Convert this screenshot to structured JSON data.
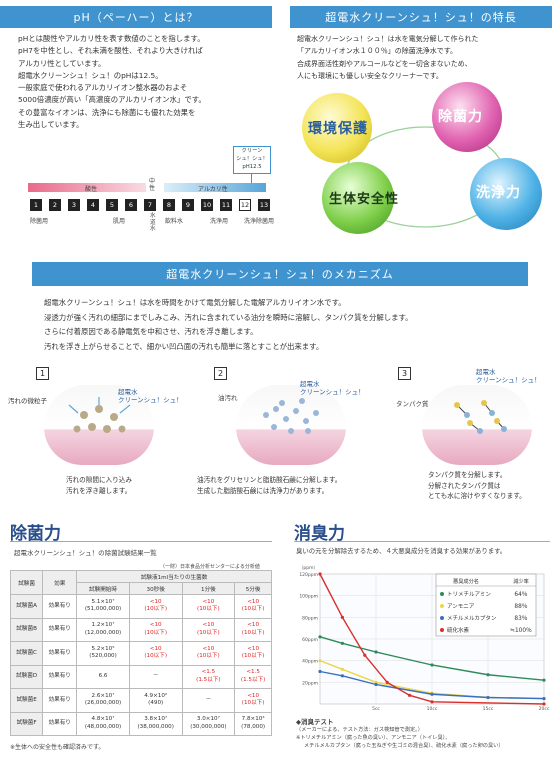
{
  "ph_section": {
    "title": "pH（ペーハー）とは？",
    "lines": [
      "pHとは酸性やアルカリ性を表す数値のことを指します。",
      "pH7を中性とし、それ未満を酸性、それより大きければ",
      "アルカリ性としています。",
      "超電水クリーンシュ！シュ！のpHは12.5。",
      "一般家庭で使われるアルカリイオン整水器のおよそ",
      "5000倍濃度が高い「高濃度のアルカリイオン水」です。",
      "その豊富なイオンは、洗浄にも除菌にも優れた効果を",
      "生み出しています。"
    ],
    "callout": "クリーン\nシュ！シュ！\npH12.5",
    "acid_label": "酸性",
    "neutral_label": "中\n性",
    "alkali_label": "アルカリ性",
    "scale": [
      "1",
      "2",
      "3",
      "4",
      "5",
      "6",
      "7",
      "8",
      "9",
      "10",
      "11",
      "12",
      "13"
    ],
    "uses": [
      "除菌用",
      "肌用",
      "水道水",
      "飲料水",
      "洗浄用",
      "洗浄除菌用"
    ]
  },
  "feature_section": {
    "title": "超電水クリーンシュ！シュ！の特長",
    "lines": [
      "超電水クリーンシュ！シュ！は水を電気分解して作られた",
      "「アルカリイオン水１００％」の除菌洗浄水です。",
      "合成界面活性剤やアルコールなどを一切含まないため、",
      "人にも環境にも優しい安全なクリーナーです。"
    ],
    "circles": [
      "環境保護",
      "除菌力",
      "生体安全性",
      "洗浄力"
    ]
  },
  "mechanism": {
    "title": "超電水クリーンシュ！シュ！のメカニズム",
    "lines": [
      "超電水クリーンシュ！シュ！は水を時間をかけて電気分解した電解アルカリイオン水です。",
      "浸透力が強く汚れの細部にまでしみこみ、汚れに含まれている油分を瞬時に溶解し、タンパク質を分解します。",
      "さらに付着原因である静電気を中和させ、汚れを浮き離します。",
      "汚れを浮き上がらせることで、細かい凹凸面の汚れも簡単に落とすことが出来ます。"
    ],
    "steps": [
      {
        "num": "1",
        "label_a": "汚れの微粒子",
        "label_b": "超電水\nクリーンシュ！シュ！",
        "caption": "汚れの隙間に入り込み\n汚れを浮き離します。"
      },
      {
        "num": "2",
        "label_a": "油汚れ",
        "label_b": "超電水\nクリーンシュ！シュ！",
        "caption": "油汚れをグリセリンと脂肪酸石鹸に分解します。\n生成した脂肪酸石鹸には洗浄力があります。"
      },
      {
        "num": "3",
        "label_a": "タンパク質",
        "label_b": "超電水\nクリーンシュ！シュ！",
        "caption": "タンパク質を分解します。\n分解されたタンパク質は\nとても水に溶けやすくなります。"
      }
    ]
  },
  "sterilization": {
    "title": "除菌力",
    "subtitle": "超電水クリーンシュ！シュ！の除菌試験結果一覧",
    "source": "（一財）日本食品分析センターによる分析値",
    "head_top": "試験液1ml当たりの生菌数",
    "headers": [
      "試験菌",
      "効果",
      "試験開始時",
      "30秒後",
      "1分後",
      "5分後"
    ],
    "rows": [
      {
        "name": "試験菌A",
        "effect": "効果有り",
        "start": "5.1×10⁷\n(51,000,000)",
        "s30": "<10\n(10以下)",
        "m1": "<10\n(10以下)",
        "m5": "<10\n(10以下)"
      },
      {
        "name": "試験菌B",
        "effect": "効果有り",
        "start": "1.2×10⁷\n(12,000,000)",
        "s30": "<10\n(10以下)",
        "m1": "<10\n(10以下)",
        "m5": "<10\n(10以下)"
      },
      {
        "name": "試験菌C",
        "effect": "効果有り",
        "start": "5.2×10⁵\n(520,000)",
        "s30": "<10\n(10以下)",
        "m1": "<10\n(10以下)",
        "m5": "<10\n(10以下)"
      },
      {
        "name": "試験菌D",
        "effect": "効果有り",
        "start": "6.6",
        "s30": "－",
        "m1": "<1.5\n(1.5以下)",
        "m5": "<1.5\n(1.5以下)"
      },
      {
        "name": "試験菌E",
        "effect": "効果有り",
        "start": "2.6×10⁷\n(26,000,000)",
        "s30": "4.9×10²\n(490)",
        "m1": "－",
        "m5": "<10\n(10以下)"
      },
      {
        "name": "試験菌F",
        "effect": "効果有り",
        "start": "4.8×10⁷\n(48,000,000)",
        "s30": "3.8×10⁷\n(38,000,000)",
        "m1": "3.0×10⁷\n(30,000,000)",
        "m5": "7.8×10⁴\n(78,000)"
      }
    ],
    "footnote": "※生体への安全性も確認済みです。"
  },
  "deodor": {
    "title": "消臭力",
    "desc": "臭いの元を分解除去するため、４大悪臭成分を消臭する効果があります。",
    "unit_label": "（ppm）",
    "y_ticks": [
      "120ppm",
      "100ppm",
      "80ppm",
      "60ppm",
      "40ppm",
      "20ppm"
    ],
    "x_ticks": [
      "5cc",
      "10cc",
      "15cc",
      "20cc"
    ],
    "legend_head": [
      "悪臭成分名",
      "減少率"
    ],
    "legend": [
      {
        "name": "トリメチルアミン",
        "rate": "64％",
        "color": "#2e8b57"
      },
      {
        "name": "アンモニア",
        "rate": "88％",
        "color": "#e9d84a"
      },
      {
        "name": "メチルメルカプタン",
        "rate": "83％",
        "color": "#3a6fbf"
      },
      {
        "name": "硫化水素",
        "rate": "≒100％",
        "color": "#d9302b"
      }
    ],
    "test_title": "◆消臭テスト",
    "notes": [
      "（メーカーによる、テスト方法：ガス検知管で測定。）",
      "※トリメチルアミン（腐った魚の臭い）、アンモニア（トイレ臭）、",
      "メチルメルカプタン（腐った玉ねぎや生ゴミの混合臭）、硫化水素（腐った卵の臭い）"
    ]
  }
}
